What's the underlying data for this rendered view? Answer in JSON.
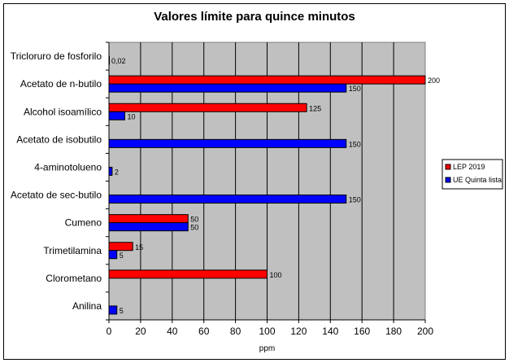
{
  "chart_data": {
    "type": "bar",
    "orientation": "horizontal",
    "title": "Valores límite para quince minutos",
    "xlabel": "ppm",
    "ylabel": "",
    "xlim": [
      0,
      200
    ],
    "xticks": [
      0,
      20,
      40,
      60,
      80,
      100,
      120,
      140,
      160,
      180,
      200
    ],
    "grid": true,
    "legend_position": "right",
    "categories": [
      "Tricloruro de fosforilo",
      "Acetato de n-butilo",
      "Alcohol isoamílico",
      "Acetato de isobutilo",
      "4-aminotolueno",
      "Acetato de sec-butilo",
      "Cumeno",
      "Trimetilamina",
      "Clorometano",
      "Anilina"
    ],
    "series": [
      {
        "name": "LEP 2019",
        "color": "#ff0000",
        "values": [
          null,
          200,
          125,
          null,
          null,
          null,
          50,
          15,
          100,
          null
        ],
        "labels": [
          "",
          "200",
          "125",
          "",
          "",
          "",
          "50",
          "15",
          "100",
          ""
        ]
      },
      {
        "name": "UE Quinta lista",
        "color": "#0000ff",
        "values": [
          0.02,
          150,
          10,
          150,
          2,
          150,
          50,
          5,
          null,
          5
        ],
        "labels": [
          "0,02",
          "150",
          "10",
          "150",
          "2",
          "150",
          "50",
          "5",
          "",
          "5"
        ]
      }
    ]
  }
}
